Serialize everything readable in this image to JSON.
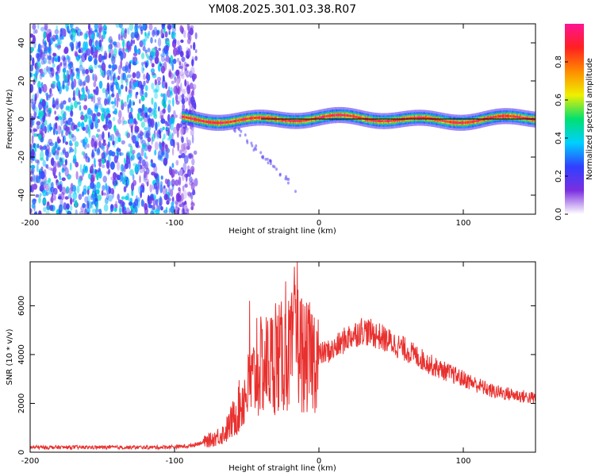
{
  "title": "YM08.2025.301.03.38.R07",
  "chart_data": [
    {
      "type": "heatmap",
      "xlabel": "Height of straight line (km)",
      "ylabel": "Frequency (Hz)",
      "xlim": [
        -200,
        150
      ],
      "ylim": [
        -50,
        50
      ],
      "xticks": [
        -200,
        -100,
        0,
        100
      ],
      "yticks": [
        -40,
        -20,
        0,
        20,
        40
      ],
      "colorbar": {
        "label": "Normalized spectral amplitude",
        "range": [
          0,
          1
        ],
        "ticks": [
          0.0,
          0.2,
          0.4,
          0.6,
          0.8
        ],
        "colormap": [
          "#ffffff",
          "#7b2fe0",
          "#3040ff",
          "#00d0ff",
          "#00e070",
          "#f0f000",
          "#ff8c00",
          "#ff2020",
          "#ff1493"
        ]
      },
      "features": [
        {
          "name": "noise",
          "x_range": [
            -200,
            -85
          ],
          "amplitude": 0.35
        },
        {
          "name": "signal",
          "x_range": [
            -95,
            150
          ],
          "freq_center": 0,
          "freq_halfwidth": 3,
          "peak_amplitude": 1.0
        },
        {
          "name": "alias",
          "x_range": [
            -60,
            -15
          ],
          "freq_start": -3,
          "freq_end": -38,
          "amplitude": 0.2
        }
      ]
    },
    {
      "type": "line",
      "xlabel": "Height of straight line (km)",
      "ylabel": "SNR (10 * v/v)",
      "xlim": [
        -200,
        150
      ],
      "ylim": [
        0,
        7800
      ],
      "xticks": [
        -200,
        -100,
        0,
        100
      ],
      "yticks": [
        0,
        2000,
        4000,
        6000
      ],
      "color": "#e8312f",
      "envelope": {
        "x": [
          -200,
          -110,
          -90,
          -75,
          -65,
          -58,
          -50,
          -45,
          -40,
          -30,
          -20,
          -15,
          -10,
          0,
          10,
          20,
          30,
          40,
          50,
          60,
          80,
          100,
          120,
          140,
          150
        ],
        "y": [
          200,
          200,
          250,
          500,
          800,
          1500,
          2500,
          3000,
          3500,
          3800,
          4000,
          4500,
          3800,
          4000,
          4200,
          4700,
          5000,
          4800,
          4500,
          4200,
          3500,
          3000,
          2500,
          2300,
          2200
        ]
      },
      "spikes": [
        {
          "x": -48,
          "y": 6200
        },
        {
          "x": -43,
          "y": 5500
        },
        {
          "x": -30,
          "y": 6100
        },
        {
          "x": -23,
          "y": 7000
        },
        {
          "x": -17,
          "y": 7600
        },
        {
          "x": -15,
          "y": 7800
        },
        {
          "x": -12,
          "y": 6300
        }
      ]
    }
  ]
}
